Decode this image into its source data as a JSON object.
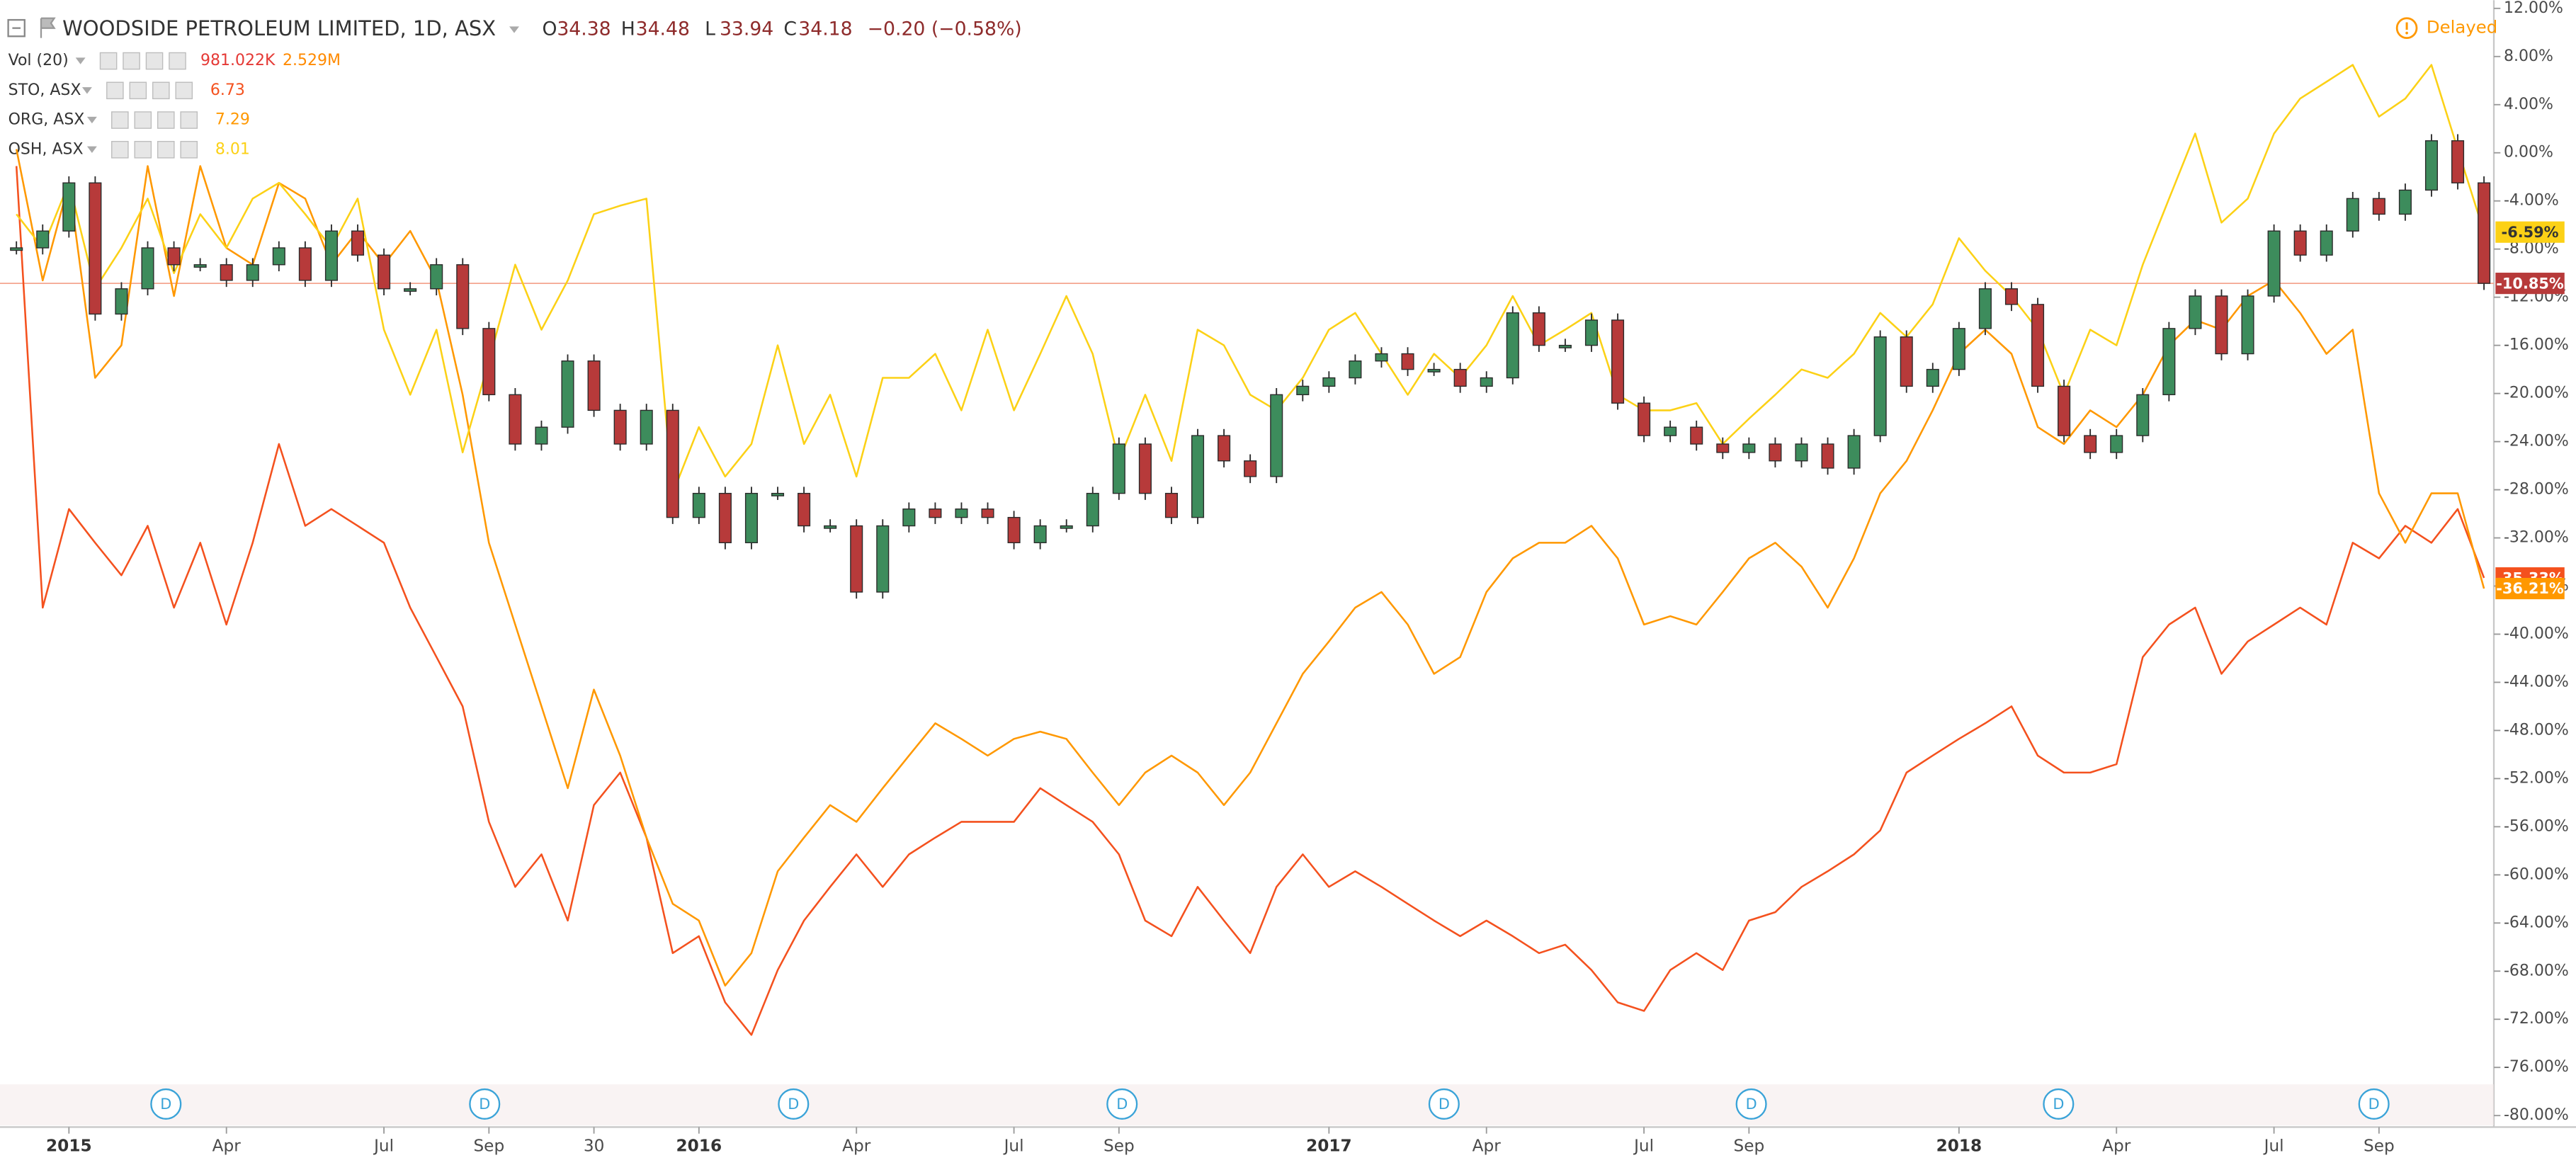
{
  "chart_data": {
    "type": "candle-compare",
    "title": "WOODSIDE PETROLEUM LIMITED, 1D, ASX",
    "ohlc": [
      {
        "label": "O",
        "value": 34.38
      },
      {
        "label": "H",
        "value": 34.48
      },
      {
        "label": "L",
        "value": 33.94
      },
      {
        "label": "C",
        "value": 34.18
      }
    ],
    "change": "−0.20 (−0.58%)",
    "volume": {
      "name": "Vol (20)",
      "values": [
        "981.022K",
        "2.529M"
      ]
    },
    "delayed": "Delayed",
    "dividend_label": "D",
    "categories": [
      null,
      null,
      "2015",
      null,
      null,
      null,
      null,
      null,
      "Apr",
      null,
      null,
      null,
      null,
      null,
      "Jul",
      null,
      null,
      null,
      "Sep",
      null,
      null,
      null,
      "30",
      null,
      null,
      null,
      "2016",
      null,
      null,
      null,
      null,
      null,
      "Apr",
      null,
      null,
      null,
      null,
      null,
      "Jul",
      null,
      null,
      null,
      "Sep",
      null,
      null,
      null,
      null,
      null,
      null,
      null,
      "2017",
      null,
      null,
      null,
      null,
      null,
      "Apr",
      null,
      null,
      null,
      null,
      null,
      "Jul",
      null,
      null,
      null,
      "Sep",
      null,
      null,
      null,
      null,
      null,
      null,
      null,
      "2018",
      null,
      null,
      null,
      null,
      null,
      "Apr",
      null,
      null,
      null,
      null,
      null,
      "Jul",
      null,
      null,
      null,
      "Sep",
      null,
      null,
      null,
      null
    ],
    "main": {
      "up_color": "#3d8c5c",
      "down_color": "#b73a3a",
      "line_color": "#f4a58f",
      "end_label": "-10.85%",
      "values": [
        -7.9,
        -6.5,
        -2.5,
        -13.4,
        -11.3,
        -7.9,
        -9.3,
        -9.3,
        -10.6,
        -9.3,
        -7.9,
        -10.6,
        -6.5,
        -8.5,
        -11.3,
        -11.3,
        -9.3,
        -14.6,
        -20.1,
        -24.2,
        -22.8,
        -17.3,
        -21.4,
        -24.2,
        -21.4,
        -30.3,
        -28.3,
        -32.4,
        -28.3,
        -28.3,
        -31,
        -31,
        -36.5,
        -31,
        -29.6,
        -30.3,
        -29.6,
        -30.3,
        -32.4,
        -31,
        -31,
        -28.3,
        -24.2,
        -28.3,
        -30.3,
        -23.5,
        -25.6,
        -26.9,
        -20.1,
        -19.4,
        -18.7,
        -17.3,
        -16.7,
        -18,
        -18,
        -19.4,
        -18.7,
        -13.3,
        -16,
        -16,
        -13.9,
        -20.8,
        -23.5,
        -22.8,
        -24.2,
        -24.9,
        -24.2,
        -25.6,
        -24.2,
        -26.2,
        -23.5,
        -15.3,
        -19.4,
        -18,
        -14.6,
        -11.3,
        -12.6,
        -19.4,
        -23.5,
        -24.9,
        -23.5,
        -20.1,
        -14.6,
        -11.9,
        -16.7,
        -11.9,
        -6.5,
        -8.5,
        -6.5,
        -3.8,
        -5.1,
        -3.1,
        1.0,
        -2.5,
        -10.85
      ]
    },
    "series": [
      {
        "name": "STO, ASX",
        "price": 6.73,
        "color": "#f4511e",
        "end_label": "-35.33%",
        "label_text_color": "#ffffff",
        "values": [
          -1.1,
          -37.8,
          -29.6,
          -32.4,
          -35.1,
          -31,
          -37.8,
          -32.4,
          -39.2,
          -32.4,
          -24.2,
          -31,
          -29.6,
          -31,
          -32.4,
          -37.8,
          -41.9,
          -46,
          -55.6,
          -61,
          -58.3,
          -63.8,
          -54.2,
          -51.5,
          -56.9,
          -66.5,
          -65.1,
          -70.6,
          -73.3,
          -67.9,
          -63.8,
          -61,
          -58.3,
          -61,
          -58.3,
          -56.9,
          -55.6,
          -55.6,
          -55.6,
          -52.8,
          -54.2,
          -55.6,
          -58.3,
          -63.8,
          -65.1,
          -61,
          -63.8,
          -66.5,
          -61,
          -58.3,
          -61,
          -59.7,
          -61,
          -62.4,
          -63.8,
          -65.1,
          -63.8,
          -65.1,
          -66.5,
          -65.8,
          -67.9,
          -70.6,
          -71.3,
          -67.9,
          -66.5,
          -67.9,
          -63.8,
          -63.1,
          -61,
          -59.7,
          -58.3,
          -56.3,
          -51.5,
          -50.1,
          -48.7,
          -47.4,
          -46,
          -50.1,
          -51.5,
          -51.5,
          -50.8,
          -41.9,
          -39.2,
          -37.8,
          -43.3,
          -40.6,
          -39.2,
          -37.8,
          -39.2,
          -32.4,
          -33.7,
          -31,
          -32.4,
          -29.6,
          -35.33
        ]
      },
      {
        "name": "ORG, ASX",
        "price": 7.29,
        "color": "#ff9800",
        "end_label": "-36.21%",
        "label_text_color": "#ffffff",
        "values": [
          0.3,
          -10.6,
          -2.5,
          -18.7,
          -16,
          -1.1,
          -11.9,
          -1.1,
          -7.9,
          -9.3,
          -2.5,
          -3.8,
          -9.3,
          -6.5,
          -9.3,
          -6.5,
          -10.6,
          -20.1,
          -32.4,
          -39.2,
          -46,
          -52.8,
          -44.6,
          -50.1,
          -56.9,
          -62.4,
          -63.8,
          -69.2,
          -66.5,
          -59.7,
          -56.9,
          -54.2,
          -55.6,
          -52.8,
          -50.1,
          -47.4,
          -48.7,
          -50.1,
          -48.7,
          -48.1,
          -48.7,
          -51.5,
          -54.2,
          -51.5,
          -50.1,
          -51.5,
          -54.2,
          -51.5,
          -47.4,
          -43.3,
          -40.6,
          -37.8,
          -36.5,
          -39.2,
          -43.3,
          -41.9,
          -36.5,
          -33.7,
          -32.4,
          -32.4,
          -31,
          -33.7,
          -39.2,
          -38.5,
          -39.2,
          -36.5,
          -33.7,
          -32.4,
          -34.4,
          -37.8,
          -33.7,
          -28.3,
          -25.6,
          -21.4,
          -16.7,
          -14.7,
          -16.7,
          -22.8,
          -24.2,
          -21.4,
          -22.8,
          -20.1,
          -16,
          -13.9,
          -14.7,
          -11.9,
          -10.6,
          -13.3,
          -16.7,
          -14.7,
          -28.3,
          -32.4,
          -28.3,
          -28.3,
          -36.21
        ]
      },
      {
        "name": "OSH, ASX",
        "price": 8.01,
        "color": "#fcd116",
        "end_label": "-6.59%",
        "label_text_color": "#333333",
        "values": [
          -5.1,
          -7.9,
          -2.5,
          -11.3,
          -7.9,
          -3.8,
          -10,
          -5.1,
          -7.9,
          -3.8,
          -2.5,
          -5.1,
          -7.9,
          -3.8,
          -14.7,
          -20.1,
          -14.7,
          -24.9,
          -17.3,
          -9.3,
          -14.7,
          -10.6,
          -5.1,
          -4.4,
          -3.8,
          -28.3,
          -22.8,
          -26.9,
          -24.2,
          -16,
          -24.2,
          -20.1,
          -26.9,
          -18.7,
          -18.7,
          -16.7,
          -21.4,
          -14.7,
          -21.4,
          -16.7,
          -11.9,
          -16.7,
          -25.6,
          -20.1,
          -25.6,
          -14.7,
          -16,
          -20.1,
          -21.4,
          -18.7,
          -14.7,
          -13.3,
          -16.7,
          -20.1,
          -16.7,
          -18.7,
          -16,
          -11.9,
          -16,
          -14.7,
          -13.3,
          -20.1,
          -21.4,
          -21.4,
          -20.8,
          -24.2,
          -22.1,
          -20.1,
          -18,
          -18.7,
          -16.7,
          -13.3,
          -15.3,
          -12.6,
          -7.1,
          -9.8,
          -11.9,
          -14.7,
          -20.1,
          -14.7,
          -16,
          -9.3,
          -3.8,
          1.6,
          -5.8,
          -3.8,
          1.6,
          4.5,
          5.9,
          7.3,
          3,
          4.5,
          7.3,
          0.3,
          -6.59
        ]
      }
    ],
    "ylim": [
      -80,
      12
    ],
    "yticks": [
      {
        "value": 12,
        "label": "12.00%"
      },
      {
        "value": 8,
        "label": "8.00%"
      },
      {
        "value": 4,
        "label": "4.00%"
      },
      {
        "value": 0,
        "label": "0.00%"
      },
      {
        "value": -4,
        "label": "-4.00%"
      },
      {
        "value": -8,
        "label": "-8.00%"
      },
      {
        "value": -12,
        "label": "-12.00%"
      },
      {
        "value": -16,
        "label": "-16.00%"
      },
      {
        "value": -20,
        "label": "-20.00%"
      },
      {
        "value": -24,
        "label": "-24.00%"
      },
      {
        "value": -28,
        "label": "-28.00%"
      },
      {
        "value": -32,
        "label": "-32.00%"
      },
      {
        "value": -36,
        "label": "-36.00%"
      },
      {
        "value": -40,
        "label": "-40.00%"
      },
      {
        "value": -44,
        "label": "-44.00%"
      },
      {
        "value": -48,
        "label": "-48.00%"
      },
      {
        "value": -52,
        "label": "-52.00%"
      },
      {
        "value": -56,
        "label": "-56.00%"
      },
      {
        "value": -60,
        "label": "-60.00%"
      },
      {
        "value": -64,
        "label": "-64.00%"
      },
      {
        "value": -68,
        "label": "-68.00%"
      },
      {
        "value": -72,
        "label": "-72.00%"
      },
      {
        "value": -76,
        "label": "-76.00%"
      },
      {
        "value": -80,
        "label": "-80.00%"
      }
    ],
    "grid": false
  }
}
